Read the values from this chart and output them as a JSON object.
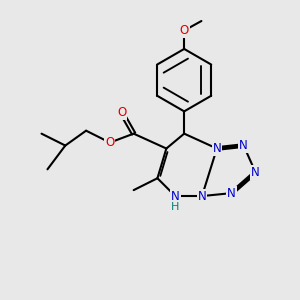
{
  "bg_color": "#e8e8e8",
  "atom_colors": {
    "C": "#000000",
    "N": "#0000cc",
    "O": "#dd0000",
    "H": "#008080"
  },
  "bond_color": "#000000",
  "bond_width": 1.5,
  "fig_width": 3.0,
  "fig_height": 3.0,
  "dpi": 100,
  "xlim": [
    0,
    10
  ],
  "ylim": [
    0,
    10
  ]
}
